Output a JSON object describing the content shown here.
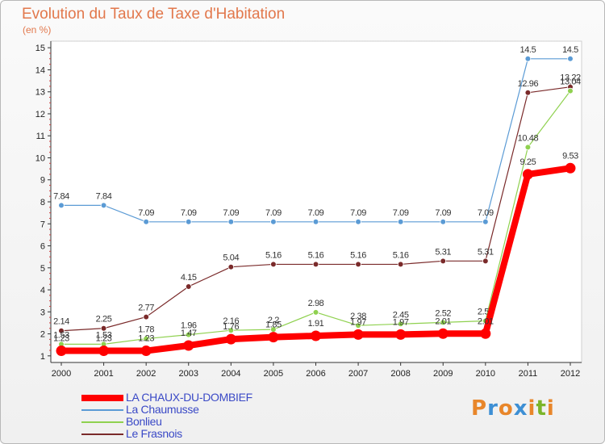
{
  "title": "Evolution du Taux de Taxe d'Habitation",
  "unit_label": "(en %)",
  "logo": {
    "letters": [
      "P",
      "r",
      "o",
      "x",
      "i",
      "t",
      "i"
    ],
    "colors": [
      "#e8862a",
      "#3d8fd4",
      "#e8862a",
      "#3d8fd4",
      "#e8862a",
      "#7bb52a",
      "#e8862a"
    ]
  },
  "chart_data": {
    "type": "line",
    "title": "Evolution du Taux de Taxe d'Habitation",
    "ylabel": "(en %)",
    "xlabel": "",
    "x": [
      "2000",
      "2001",
      "2002",
      "2003",
      "2004",
      "2005",
      "2006",
      "2007",
      "2008",
      "2009",
      "2010",
      "2011",
      "2012"
    ],
    "ylim": [
      0.7,
      15.3
    ],
    "yticks": [
      1,
      2,
      3,
      4,
      5,
      6,
      7,
      8,
      9,
      10,
      11,
      12,
      13,
      14,
      15
    ],
    "grid": false,
    "legend_position": "bottom-left",
    "series": [
      {
        "name": "LA CHAUX-DU-DOMBIEF",
        "color": "#ff0000",
        "values": [
          1.23,
          1.23,
          1.23,
          1.47,
          1.76,
          1.85,
          1.91,
          1.97,
          1.97,
          2.01,
          2.01,
          9.25,
          9.53
        ],
        "labels": [
          "1.23",
          "1.23",
          "1.23",
          "1.47",
          "1.76",
          "1.85",
          "1.91",
          "1.97",
          "1.97",
          "2.01",
          "2.01",
          "9.25",
          "9.53"
        ]
      },
      {
        "name": "La Chaumusse",
        "color": "#5b9bd5",
        "values": [
          7.84,
          7.84,
          7.09,
          7.09,
          7.09,
          7.09,
          7.09,
          7.09,
          7.09,
          7.09,
          7.09,
          14.5,
          14.5
        ],
        "labels": [
          "7.84",
          "7.84",
          "7.09",
          "7.09",
          "7.09",
          "7.09",
          "7.09",
          "7.09",
          "7.09",
          "7.09",
          "7.09",
          "14.5",
          "14.5"
        ]
      },
      {
        "name": "Bonlieu",
        "color": "#8fd14f",
        "values": [
          1.53,
          1.53,
          1.78,
          1.96,
          2.16,
          2.2,
          2.98,
          2.38,
          2.45,
          2.52,
          2.59,
          10.48,
          13.04
        ],
        "labels": [
          "1.53",
          "1.53",
          "1.78",
          "1.96",
          "2.16",
          "2.2",
          "2.98",
          "2.38",
          "2.45",
          "2.52",
          "2.59",
          "10.48",
          "13.04"
        ]
      },
      {
        "name": "Le Frasnois",
        "color": "#7a2a2a",
        "values": [
          2.14,
          2.25,
          2.77,
          4.15,
          5.04,
          5.16,
          5.16,
          5.16,
          5.16,
          5.31,
          5.31,
          12.96,
          13.22
        ],
        "labels": [
          "2.14",
          "2.25",
          "2.77",
          "4.15",
          "5.04",
          "5.16",
          "5.16",
          "5.16",
          "5.16",
          "5.31",
          "5.31",
          "12.96",
          "13.22"
        ]
      }
    ]
  }
}
